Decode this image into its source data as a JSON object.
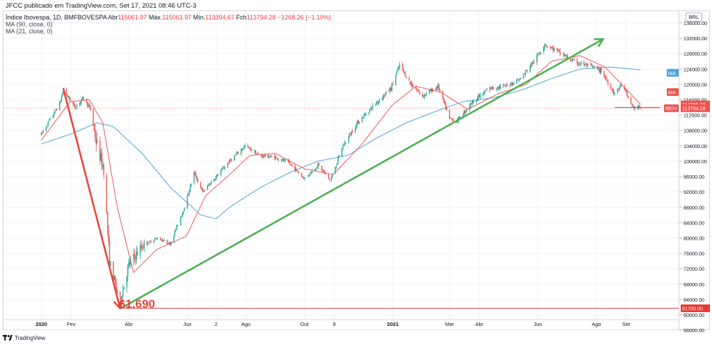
{
  "header": {
    "publisher": "JFCC publicado em TradingView.com, Set 17, 2021 08:46 UTC-3",
    "symbol": "Índice Ibovespa, 1D, BMFBOVESPA",
    "open_label": "Abr",
    "open": "115061.97",
    "high_label": "Máx.",
    "high": "115061.97",
    "low_label": "Mín.",
    "low": "113394.67",
    "close_label": "Fch",
    "close": "113794.28",
    "change": "−1268.26 (−1.10%)",
    "ma90": "MA (90, close, 0)",
    "ma21": "MA (21, close, 0)"
  },
  "axis": {
    "currency": "BRL",
    "y_ticks": [
      "136000.00",
      "132000.00",
      "128000.00",
      "124000.00",
      "120000.00",
      "116000.00",
      "112000.00",
      "108000.00",
      "104000.00",
      "100000.00",
      "96000.00",
      "92000.00",
      "88000.00",
      "84000.00",
      "80000.00",
      "76000.00",
      "72000.00",
      "68000.00",
      "64000.00",
      "60000.00",
      "56000.00"
    ],
    "x_ticks": [
      "2020",
      "Fev",
      "Abr",
      "Jun",
      "2",
      "Ago",
      "Out",
      "9",
      "2021",
      "Mar",
      "Abr",
      "Jun",
      "Ago",
      "Set"
    ],
    "bold_x_ticks": [
      "2020",
      "2021"
    ]
  },
  "badges": {
    "ma90_label": "MA",
    "ma21_label": "MA",
    "ma21_value": "114799.99",
    "price_label": "IBOV",
    "price_value": "113794.28",
    "level_value": "61700.00"
  },
  "annotation": {
    "low_text": "61.690"
  },
  "footer": {
    "brand": "TradingView"
  },
  "colors": {
    "up": "#26a69a",
    "down": "#ef5350",
    "ma21": "#f05656",
    "ma90": "#4da3e0",
    "arrow_down": "#e8453c",
    "arrow_up": "#4caf50",
    "hline": "#e53935"
  },
  "chart_data": {
    "type": "candlestick",
    "title": "Índice Ibovespa, 1D, BMFBOVESPA",
    "ylim": [
      53000,
      138000
    ],
    "y_ticks": [
      56000,
      60000,
      64000,
      68000,
      72000,
      76000,
      80000,
      84000,
      88000,
      92000,
      96000,
      100000,
      104000,
      108000,
      112000,
      116000,
      120000,
      124000,
      128000,
      132000,
      136000
    ],
    "x_ticks": [
      "2020",
      "Fev",
      "Abr",
      "Jun",
      "2",
      "Ago",
      "Out",
      "9",
      "2021",
      "Mar",
      "Abr",
      "Jun",
      "Ago",
      "Set"
    ],
    "last": {
      "open": 115061.97,
      "high": 115061.97,
      "low": 113394.67,
      "close": 113794.28
    },
    "ma21_last": 114799.99,
    "horizontal_levels": [
      61700,
      114000
    ],
    "low_annotation": 61690,
    "price_anchors": [
      [
        "2020-01-01",
        107000
      ],
      [
        "2020-01-20",
        115000
      ],
      [
        "2020-01-24",
        118500
      ],
      [
        "2020-02-05",
        114000
      ],
      [
        "2020-02-14",
        116500
      ],
      [
        "2020-02-21",
        113500
      ],
      [
        "2020-02-28",
        104000
      ],
      [
        "2020-03-06",
        98000
      ],
      [
        "2020-03-12",
        74000
      ],
      [
        "2020-03-16",
        70000
      ],
      [
        "2020-03-20",
        66000
      ],
      [
        "2020-03-23",
        63500
      ],
      [
        "2020-04-01",
        73000
      ],
      [
        "2020-04-15",
        78000
      ],
      [
        "2020-05-01",
        80000
      ],
      [
        "2020-05-14",
        78500
      ],
      [
        "2020-05-29",
        88000
      ],
      [
        "2020-06-08",
        97000
      ],
      [
        "2020-06-17",
        92000
      ],
      [
        "2020-07-01",
        96000
      ],
      [
        "2020-07-15",
        100000
      ],
      [
        "2020-07-31",
        104000
      ],
      [
        "2020-08-15",
        101500
      ],
      [
        "2020-09-01",
        101000
      ],
      [
        "2020-09-15",
        99500
      ],
      [
        "2020-10-01",
        95500
      ],
      [
        "2020-10-15",
        99000
      ],
      [
        "2020-10-28",
        95000
      ],
      [
        "2020-11-10",
        104000
      ],
      [
        "2020-11-25",
        110000
      ],
      [
        "2020-12-10",
        114000
      ],
      [
        "2020-12-30",
        119000
      ],
      [
        "2021-01-08",
        125000
      ],
      [
        "2021-01-20",
        120000
      ],
      [
        "2021-02-01",
        117000
      ],
      [
        "2021-02-17",
        119500
      ],
      [
        "2021-03-01",
        111000
      ],
      [
        "2021-03-09",
        110500
      ],
      [
        "2021-03-25",
        115500
      ],
      [
        "2021-04-12",
        119000
      ],
      [
        "2021-04-28",
        119500
      ],
      [
        "2021-05-14",
        121500
      ],
      [
        "2021-06-01",
        127500
      ],
      [
        "2021-06-08",
        130500
      ],
      [
        "2021-06-22",
        128500
      ],
      [
        "2021-07-08",
        126000
      ],
      [
        "2021-07-28",
        124500
      ],
      [
        "2021-08-06",
        123500
      ],
      [
        "2021-08-20",
        117500
      ],
      [
        "2021-08-27",
        120000
      ],
      [
        "2021-09-08",
        114000
      ],
      [
        "2021-09-16",
        113800
      ]
    ],
    "ma90_anchors": [
      [
        "2020-01-01",
        104500
      ],
      [
        "2020-01-31",
        107000
      ],
      [
        "2020-02-28",
        110000
      ],
      [
        "2020-03-16",
        109000
      ],
      [
        "2020-04-15",
        102000
      ],
      [
        "2020-05-15",
        93000
      ],
      [
        "2020-06-15",
        86000
      ],
      [
        "2020-07-01",
        85000
      ],
      [
        "2020-07-15",
        88000
      ],
      [
        "2020-08-15",
        93000
      ],
      [
        "2020-09-15",
        97000
      ],
      [
        "2020-10-15",
        100000
      ],
      [
        "2020-11-15",
        101500
      ],
      [
        "2020-12-15",
        106000
      ],
      [
        "2021-01-15",
        110000
      ],
      [
        "2021-02-15",
        113000
      ],
      [
        "2021-03-15",
        115500
      ],
      [
        "2021-04-15",
        116500
      ],
      [
        "2021-05-15",
        118500
      ],
      [
        "2021-06-15",
        121500
      ],
      [
        "2021-07-15",
        124000
      ],
      [
        "2021-08-15",
        124500
      ],
      [
        "2021-09-16",
        123800
      ]
    ],
    "ma21_anchors": [
      [
        "2020-01-01",
        105500
      ],
      [
        "2020-01-31",
        115500
      ],
      [
        "2020-02-20",
        116000
      ],
      [
        "2020-03-05",
        110000
      ],
      [
        "2020-03-20",
        88000
      ],
      [
        "2020-04-06",
        71000
      ],
      [
        "2020-04-30",
        77000
      ],
      [
        "2020-05-31",
        80500
      ],
      [
        "2020-06-20",
        91000
      ],
      [
        "2020-07-15",
        96500
      ],
      [
        "2020-08-05",
        101500
      ],
      [
        "2020-09-01",
        102000
      ],
      [
        "2020-10-01",
        98000
      ],
      [
        "2020-10-31",
        96500
      ],
      [
        "2020-11-30",
        104500
      ],
      [
        "2020-12-31",
        114500
      ],
      [
        "2021-01-25",
        119500
      ],
      [
        "2021-02-20",
        118000
      ],
      [
        "2021-03-20",
        113500
      ],
      [
        "2021-04-20",
        117500
      ],
      [
        "2021-05-20",
        120000
      ],
      [
        "2021-06-15",
        126000
      ],
      [
        "2021-07-15",
        127500
      ],
      [
        "2021-08-10",
        124500
      ],
      [
        "2021-09-16",
        114800
      ]
    ],
    "drawings": [
      {
        "kind": "arrow",
        "color": "arrow_down",
        "from": [
          "2020-01-24",
          118800
        ],
        "to": [
          "2020-03-23",
          61700
        ]
      },
      {
        "kind": "arrow",
        "color": "arrow_up",
        "from": [
          "2020-03-26",
          62000
        ],
        "to": [
          "2021-08-08",
          131800
        ]
      },
      {
        "kind": "hline",
        "color": "hline",
        "from": [
          "2020-03-23",
          61700
        ],
        "to": [
          "2021-12-30",
          61700
        ]
      },
      {
        "kind": "hline",
        "color": "hline",
        "from": [
          "2021-08-20",
          114000
        ],
        "to": [
          "2021-10-06",
          114000
        ]
      }
    ]
  }
}
